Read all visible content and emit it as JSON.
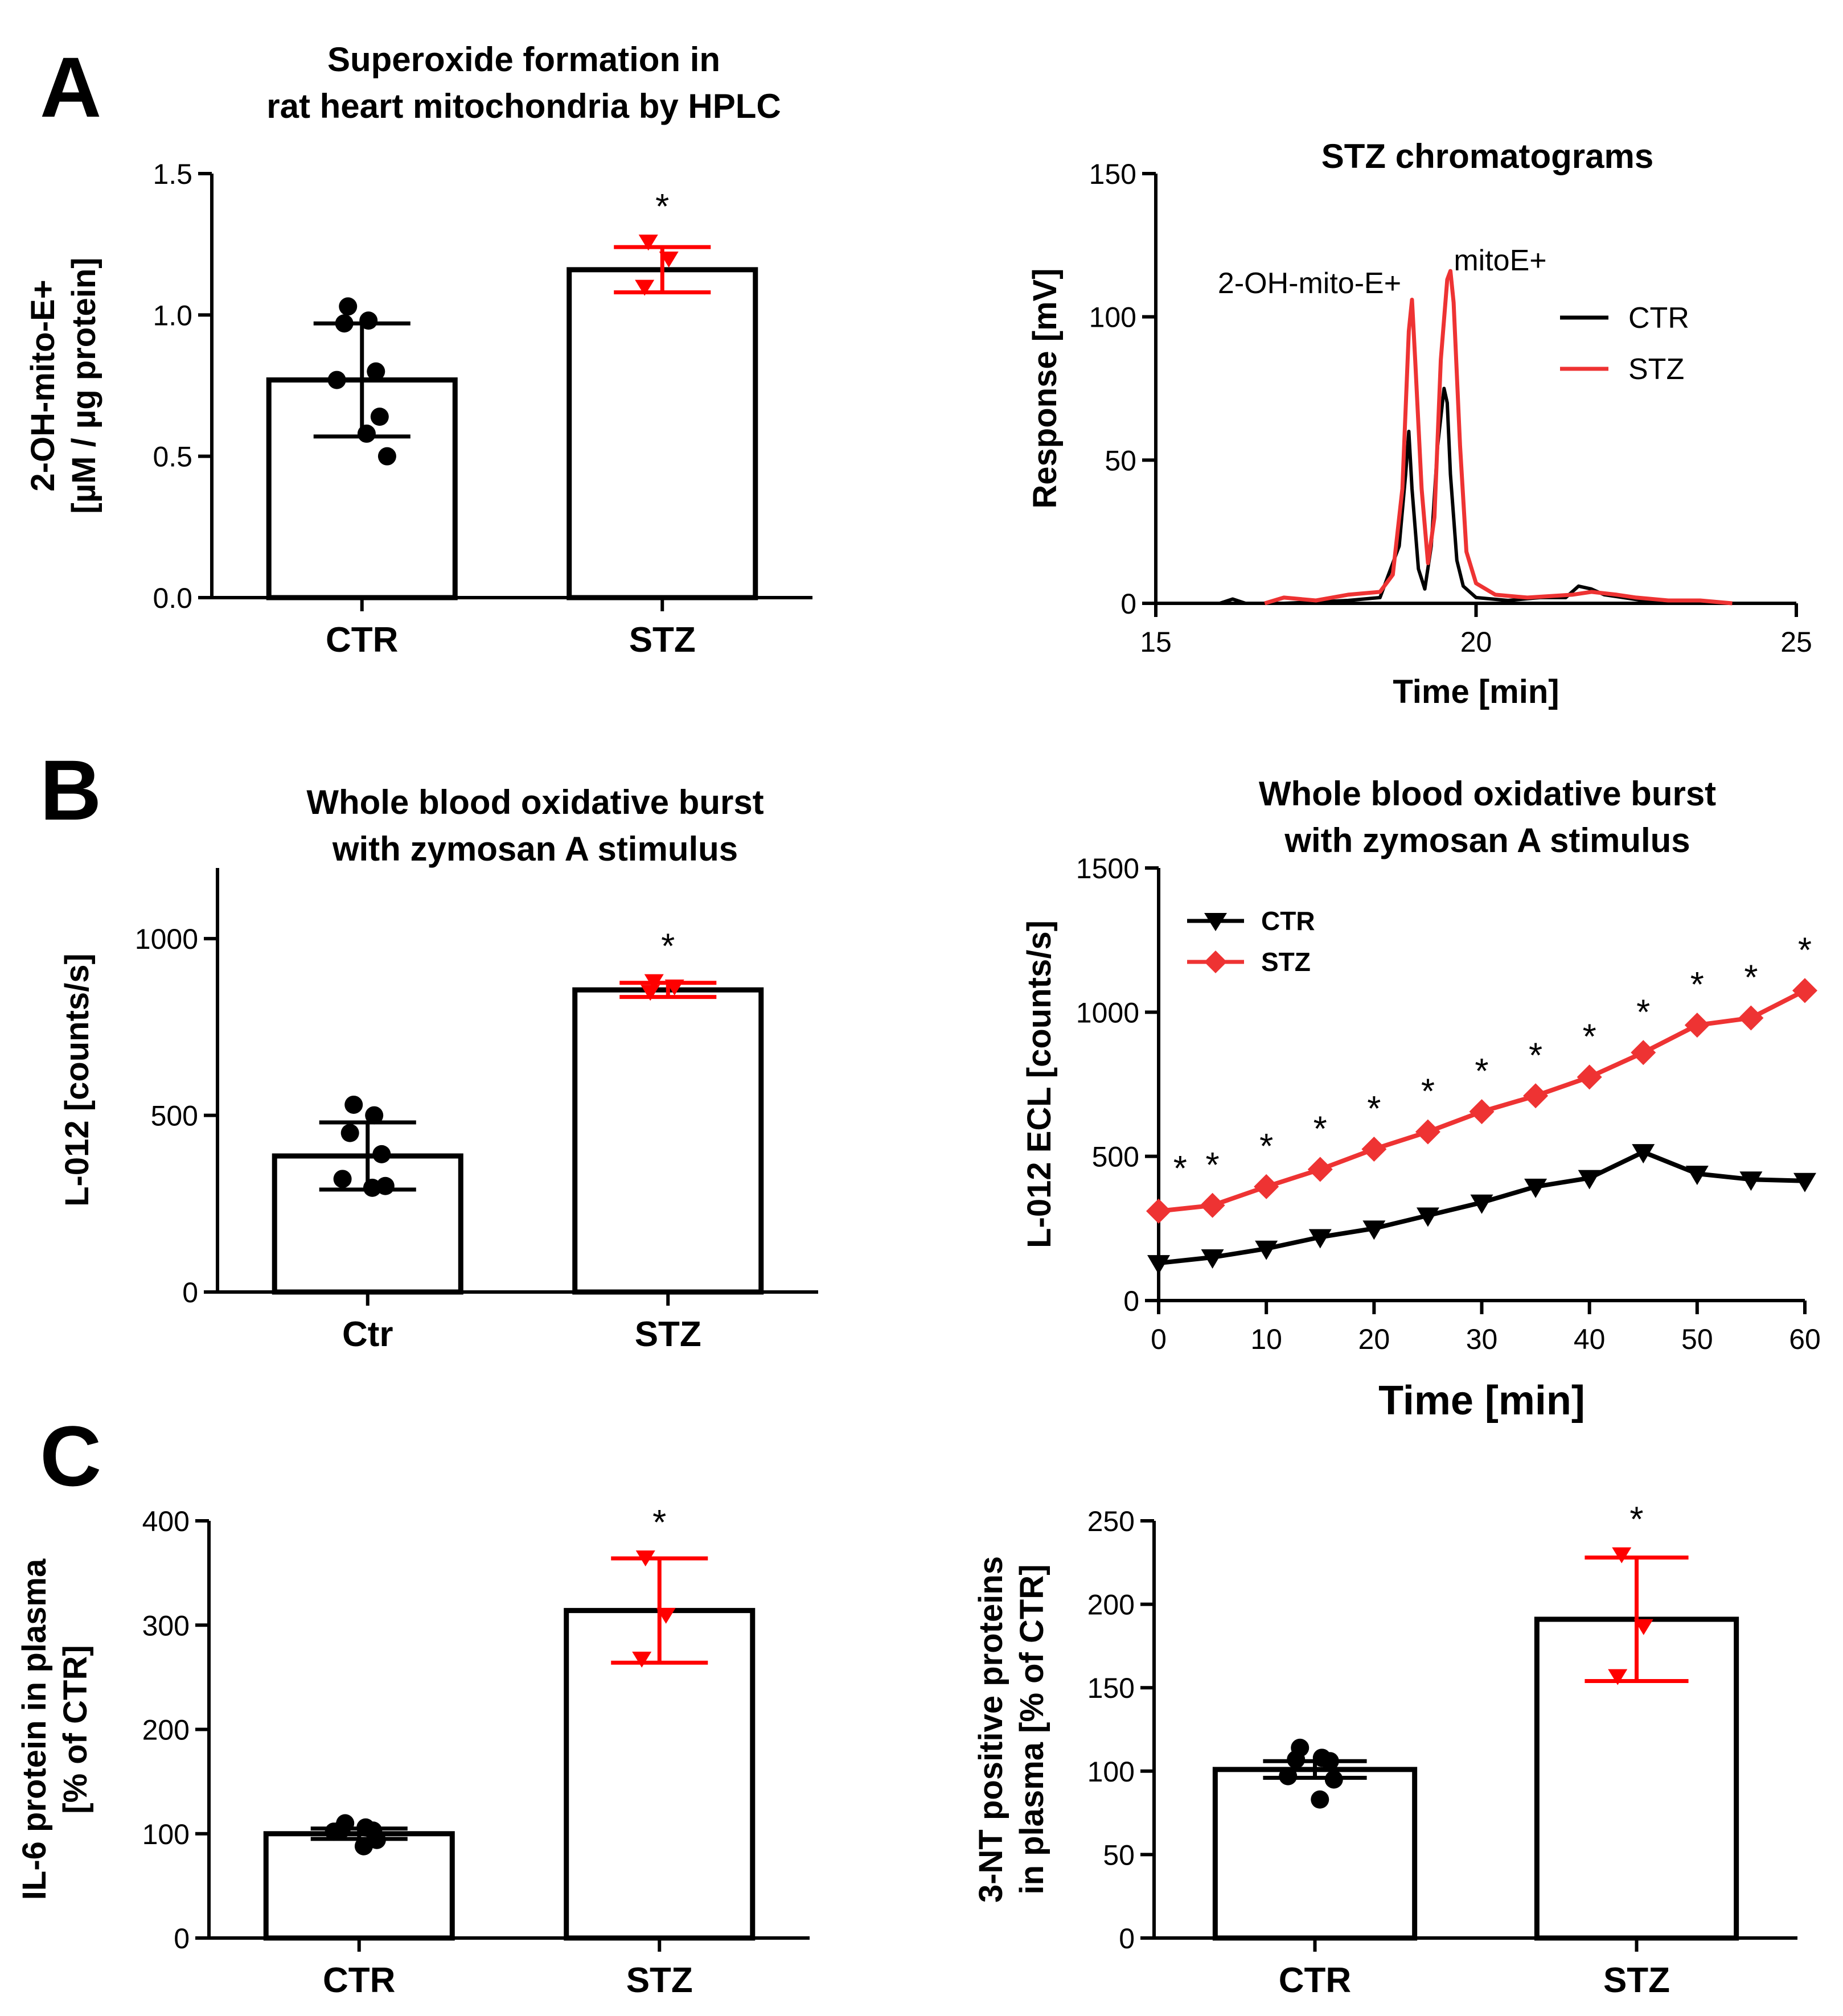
{
  "panel_labels": [
    "A",
    "B",
    "C"
  ],
  "chart_data": [
    {
      "type": "bar",
      "panel": "A-left",
      "title": [
        "Superoxide formation in",
        "rat heart mitochondria by HPLC"
      ],
      "xlabel": "",
      "ylabel": [
        "2-OH-mito-E+",
        "[µM / µg protein]"
      ],
      "ylim": [
        0,
        1.5
      ],
      "yticks": [
        0.0,
        0.5,
        1.0,
        1.5
      ],
      "ytick_labels": [
        "0.0",
        "0.5",
        "1.0",
        "1.5"
      ],
      "categories": [
        "CTR",
        "STZ"
      ],
      "values": [
        0.77,
        1.16
      ],
      "errors": [
        0.2,
        0.08
      ],
      "points": [
        [
          1.03,
          0.98,
          0.97,
          0.8,
          0.77,
          0.64,
          0.58,
          0.5
        ],
        [
          1.26,
          1.2,
          1.1
        ]
      ],
      "significance": [
        "",
        "*"
      ],
      "colors": [
        "#000000",
        "#ff0000"
      ]
    },
    {
      "type": "line",
      "panel": "A-right",
      "title": "STZ chromatograms",
      "xlabel": "Time [min]",
      "ylabel": "Response [mV]",
      "xlim": [
        15,
        25
      ],
      "ylim": [
        0,
        150
      ],
      "xticks": [
        15,
        20,
        25
      ],
      "yticks": [
        0,
        50,
        100,
        150
      ],
      "legend": [
        "CTR",
        "STZ"
      ],
      "annotations": [
        "2-OH-mito-E+",
        "mitoE+"
      ],
      "series": [
        {
          "name": "CTR",
          "color": "#000000",
          "x": [
            15.0,
            16.0,
            16.2,
            16.4,
            17.0,
            18.0,
            18.5,
            18.8,
            18.9,
            18.95,
            19.0,
            19.1,
            19.2,
            19.3,
            19.4,
            19.5,
            19.55,
            19.6,
            19.7,
            19.8,
            20.0,
            20.5,
            21.0,
            21.4,
            21.6,
            21.8,
            22.0,
            22.3,
            22.6,
            23.0,
            24.0,
            25.0
          ],
          "y": [
            0,
            0,
            1.5,
            0,
            0,
            1,
            2,
            20,
            45,
            60,
            40,
            12,
            5,
            20,
            55,
            75,
            70,
            45,
            15,
            6,
            2,
            1,
            2,
            2,
            6,
            5,
            3,
            2,
            1,
            0,
            0,
            0
          ]
        },
        {
          "name": "STZ",
          "color": "#ee3333",
          "x": [
            16.7,
            17.0,
            17.5,
            18.0,
            18.5,
            18.7,
            18.85,
            18.95,
            19.0,
            19.05,
            19.15,
            19.25,
            19.35,
            19.45,
            19.55,
            19.6,
            19.65,
            19.75,
            19.85,
            20.0,
            20.3,
            20.8,
            21.5,
            21.8,
            22.2,
            22.5,
            23.0,
            23.5,
            24.0
          ],
          "y": [
            0,
            2,
            1,
            3,
            4,
            10,
            40,
            95,
            106,
            85,
            40,
            14,
            30,
            85,
            113,
            116,
            105,
            55,
            18,
            7,
            3,
            2,
            3,
            4,
            3,
            2,
            1,
            1,
            0
          ]
        }
      ]
    },
    {
      "type": "bar",
      "panel": "B-left",
      "title": [
        "Whole blood oxidative burst",
        "with zymosan A stimulus"
      ],
      "xlabel": "",
      "ylabel": "L-012 [counts/s]",
      "ylim": [
        0,
        1200
      ],
      "yticks": [
        0,
        500,
        1000
      ],
      "categories": [
        "Ctr",
        "STZ"
      ],
      "values": [
        385,
        855
      ],
      "errors": [
        95,
        20
      ],
      "points": [
        [
          530,
          500,
          450,
          390,
          320,
          300,
          295
        ],
        [
          880,
          865,
          850
        ]
      ],
      "significance": [
        "",
        "*"
      ],
      "colors": [
        "#000000",
        "#ff0000"
      ]
    },
    {
      "type": "line",
      "panel": "B-right",
      "title": [
        "Whole blood oxidative burst",
        "with zymosan A stimulus"
      ],
      "xlabel": "Time [min]",
      "ylabel": "L-012 ECL [counts/s]",
      "xlim": [
        0,
        60
      ],
      "ylim": [
        0,
        1500
      ],
      "xticks": [
        0,
        10,
        20,
        30,
        40,
        50,
        60
      ],
      "yticks": [
        0,
        500,
        1000,
        1500
      ],
      "legend": [
        "CTR",
        "STZ"
      ],
      "x": [
        0,
        5,
        10,
        15,
        20,
        25,
        30,
        35,
        40,
        45,
        50,
        55,
        60
      ],
      "series": [
        {
          "name": "CTR",
          "color": "#000000",
          "marker": "triangle-down",
          "values": [
            130,
            150,
            180,
            220,
            250,
            295,
            340,
            395,
            425,
            515,
            440,
            420,
            415
          ]
        },
        {
          "name": "STZ",
          "color": "#ee3333",
          "marker": "diamond",
          "values": [
            310,
            330,
            395,
            455,
            525,
            585,
            655,
            710,
            775,
            860,
            955,
            980,
            1075
          ]
        }
      ],
      "significance_x": [
        2,
        5,
        10,
        15,
        20,
        25,
        30,
        35,
        40,
        45,
        50,
        55,
        60
      ],
      "significance_label": "*"
    },
    {
      "type": "bar",
      "panel": "C-left",
      "title": "",
      "xlabel": "",
      "ylabel": [
        "IL-6 protein in plasma",
        "[% of CTR]"
      ],
      "ylim": [
        0,
        400
      ],
      "yticks": [
        0,
        100,
        200,
        300,
        400
      ],
      "categories": [
        "CTR",
        "STZ"
      ],
      "values": [
        100,
        314
      ],
      "errors": [
        5,
        50
      ],
      "points": [
        [
          110,
          106,
          104,
          103,
          102,
          94,
          88
        ],
        [
          365,
          310,
          268
        ]
      ],
      "significance": [
        "",
        "*"
      ],
      "colors": [
        "#000000",
        "#ff0000"
      ]
    },
    {
      "type": "bar",
      "panel": "C-right",
      "title": "",
      "xlabel": "",
      "ylabel": [
        "3-NT positive proteins",
        "in plasma [% of CTR]"
      ],
      "ylim": [
        0,
        250
      ],
      "yticks": [
        0,
        50,
        100,
        150,
        200,
        250
      ],
      "categories": [
        "CTR",
        "STZ"
      ],
      "values": [
        101,
        191
      ],
      "errors": [
        5,
        37
      ],
      "points": [
        [
          114,
          108,
          107,
          106,
          97,
          95,
          83
        ],
        [
          230,
          187,
          157
        ]
      ],
      "significance": [
        "",
        "*"
      ],
      "colors": [
        "#000000",
        "#ff0000"
      ]
    }
  ]
}
